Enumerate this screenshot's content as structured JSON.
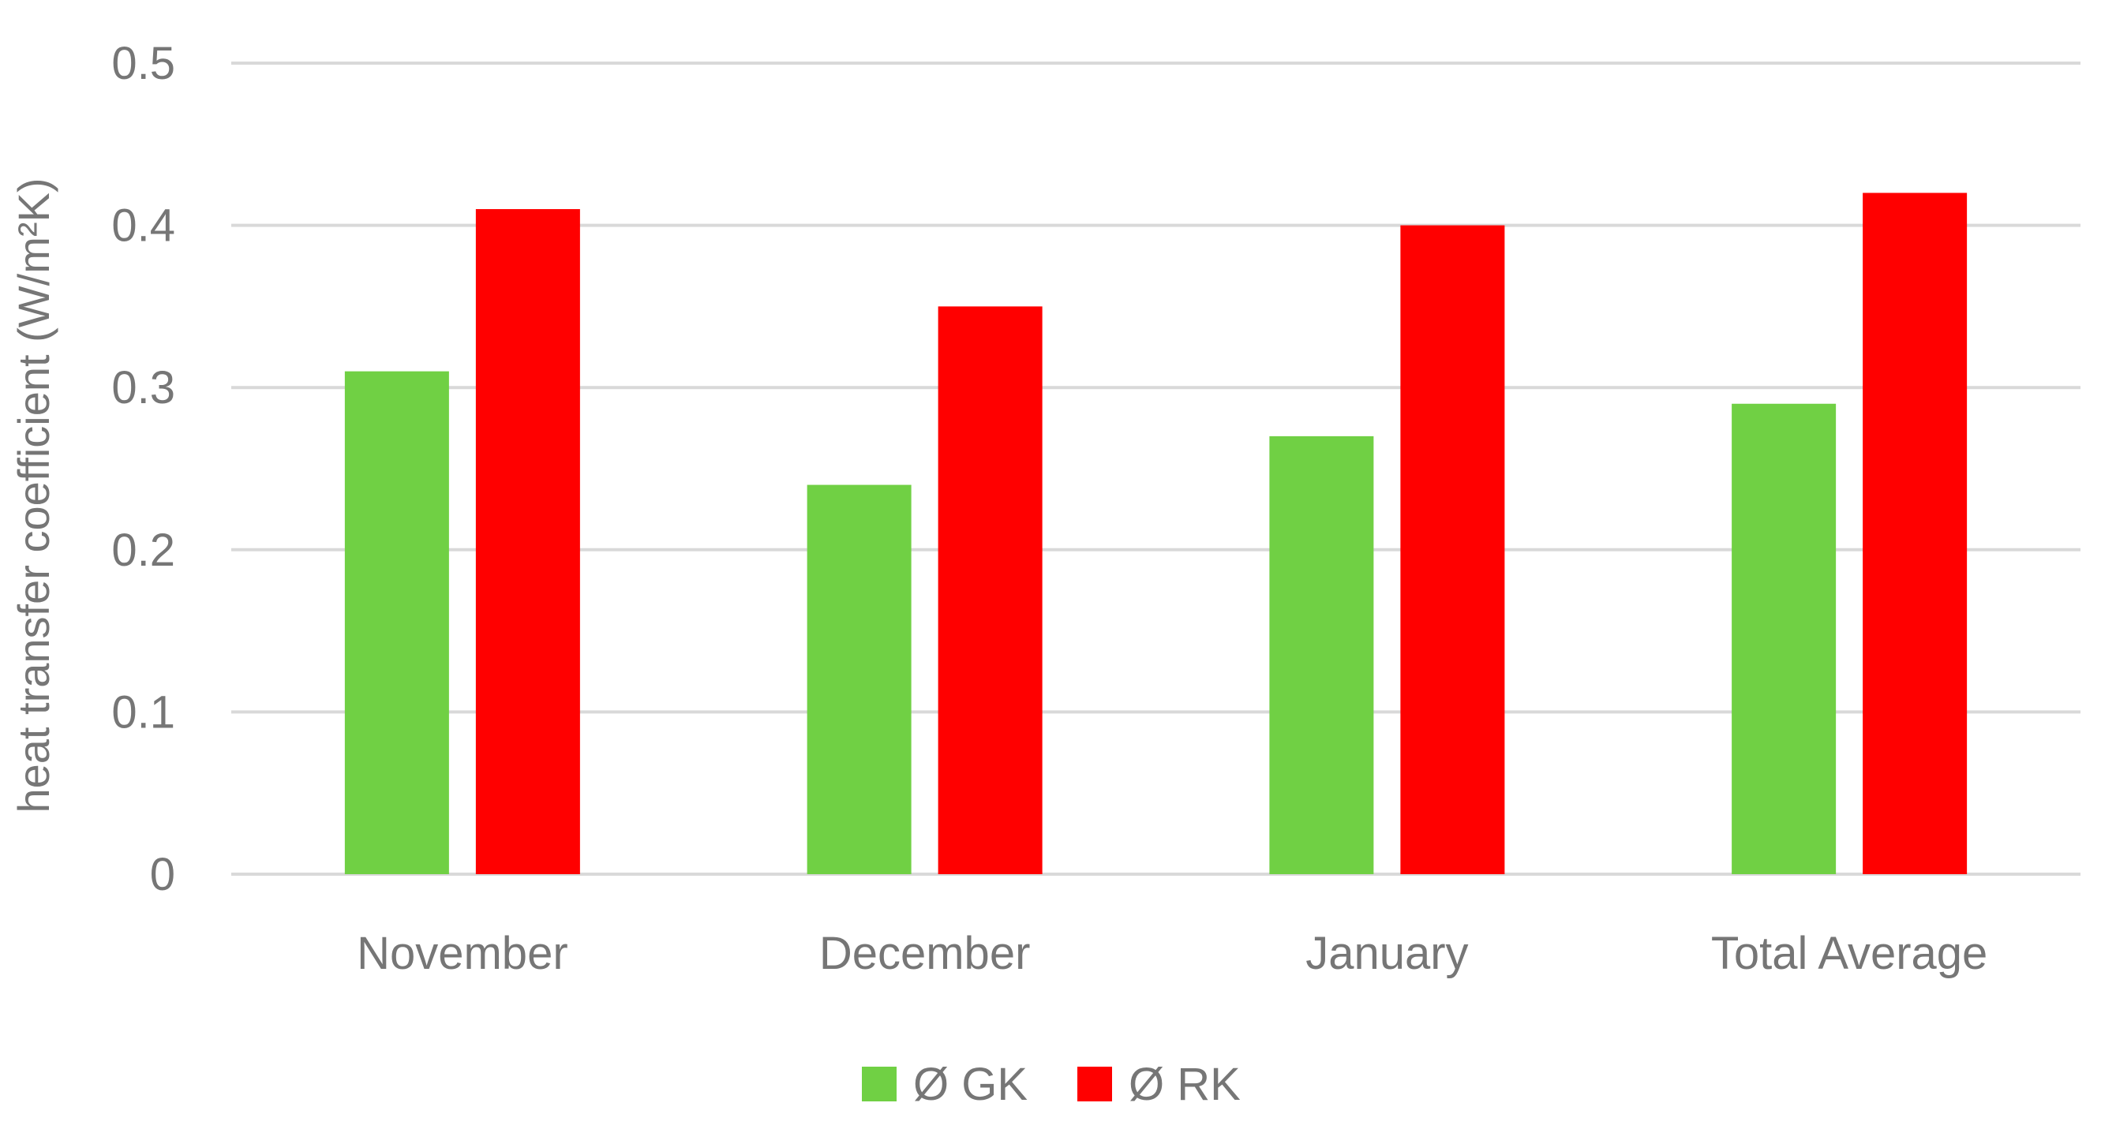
{
  "chart_data": {
    "type": "bar",
    "title": "",
    "xlabel": "",
    "ylabel": "heat transfer coefficient (W/m²K)",
    "ylim": [
      0,
      0.5
    ],
    "yticks": [
      "0",
      "0.1",
      "0.2",
      "0.3",
      "0.4",
      "0.5"
    ],
    "grid": true,
    "legend_position": "bottom",
    "categories": [
      "November",
      "December",
      "January",
      "Total Average"
    ],
    "series": [
      {
        "name": "Ø GK",
        "color": "#70d044",
        "values": [
          0.31,
          0.24,
          0.27,
          0.29
        ]
      },
      {
        "name": "Ø RK",
        "color": "#ff0000",
        "values": [
          0.41,
          0.35,
          0.4,
          0.42
        ]
      }
    ]
  }
}
